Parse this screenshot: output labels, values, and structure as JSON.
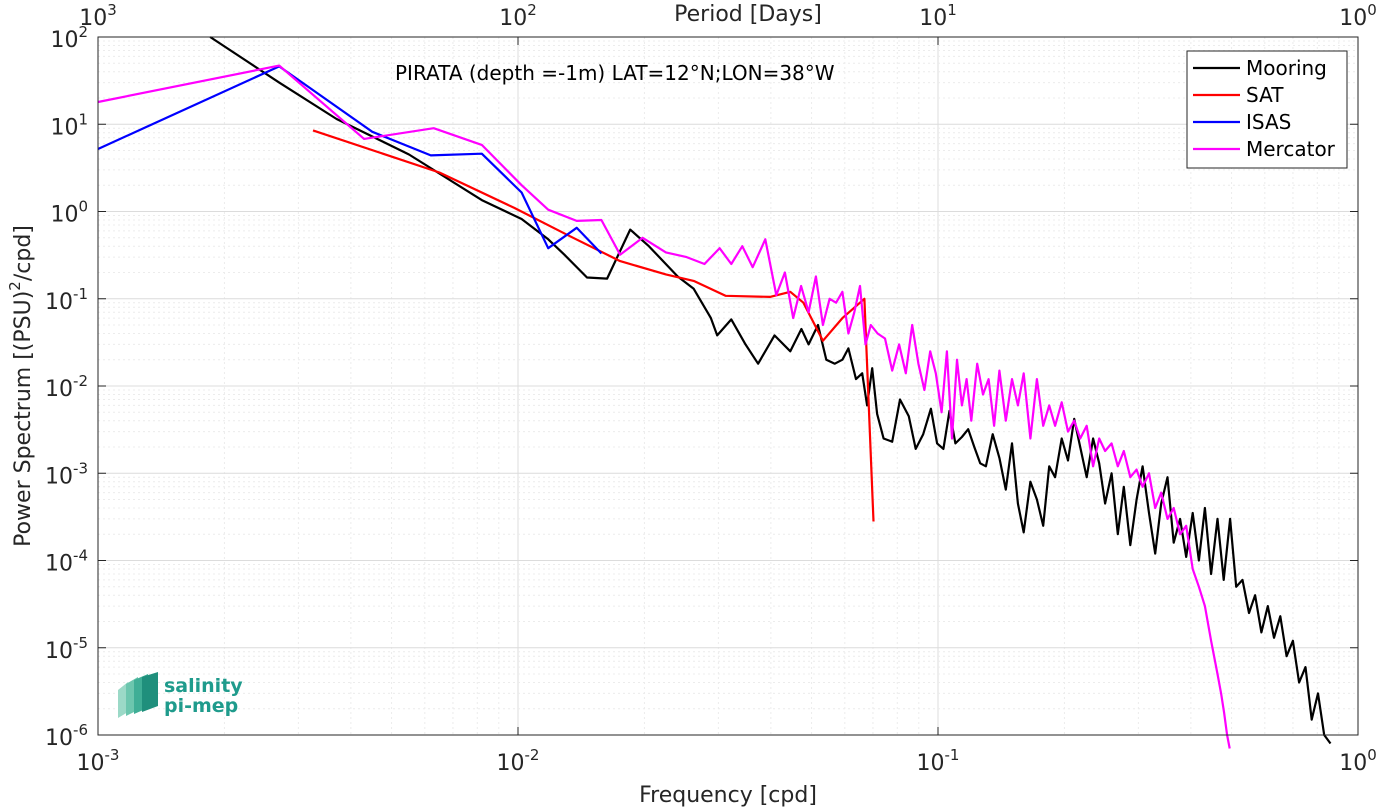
{
  "chart_data": {
    "type": "line",
    "title": "",
    "annotation": "PIRATA (depth =-1m) LAT=12°N;LON=38°W",
    "xlabel": "Frequency [cpd]",
    "ylabel": "Power Spectrum [(PSU)",
    "ylabel_sup": "2",
    "ylabel_suffix": "/cpd]",
    "x2label": "Period [Days]",
    "xscale": "log",
    "yscale": "log",
    "xlim": [
      0.001,
      1
    ],
    "ylim": [
      1e-06,
      100
    ],
    "x2lim": [
      1000,
      1
    ],
    "grid": "major and minor",
    "legend_position": "top-right",
    "x_ticks": [
      {
        "value": 0.001,
        "base": "10",
        "exp": "-3"
      },
      {
        "value": 0.01,
        "base": "10",
        "exp": "-2"
      },
      {
        "value": 0.1,
        "base": "10",
        "exp": "-1"
      },
      {
        "value": 1,
        "base": "10",
        "exp": "0"
      }
    ],
    "x2_ticks": [
      {
        "period": 1000,
        "base": "10",
        "exp": "3"
      },
      {
        "period": 100,
        "base": "10",
        "exp": "2"
      },
      {
        "period": 10,
        "base": "10",
        "exp": "1"
      },
      {
        "period": 1,
        "base": "10",
        "exp": "0"
      }
    ],
    "y_ticks": [
      {
        "value": 100,
        "base": "10",
        "exp": "2"
      },
      {
        "value": 10,
        "base": "10",
        "exp": "1"
      },
      {
        "value": 1,
        "base": "10",
        "exp": "0"
      },
      {
        "value": 0.1,
        "base": "10",
        "exp": "-1"
      },
      {
        "value": 0.01,
        "base": "10",
        "exp": "-2"
      },
      {
        "value": 0.001,
        "base": "10",
        "exp": "-3"
      },
      {
        "value": 0.0001,
        "base": "10",
        "exp": "-4"
      },
      {
        "value": 1e-05,
        "base": "10",
        "exp": "-5"
      },
      {
        "value": 1e-06,
        "base": "10",
        "exp": "-6"
      }
    ],
    "series": [
      {
        "name": "Mooring",
        "color": "#000000",
        "x": [
          0.00185,
          0.0027,
          0.0037,
          0.0055,
          0.0082,
          0.0102,
          0.0118,
          0.0129,
          0.0146,
          0.0163,
          0.0185,
          0.0205,
          0.024,
          0.0262,
          0.0288,
          0.0298,
          0.0322,
          0.0348,
          0.0373,
          0.0408,
          0.0445,
          0.0473,
          0.0492,
          0.0518,
          0.0542,
          0.0568,
          0.0592,
          0.0612,
          0.0638,
          0.066,
          0.0678,
          0.0697,
          0.0716,
          0.0742,
          0.0778,
          0.0812,
          0.0852,
          0.0885,
          0.0922,
          0.0962,
          0.0995,
          0.103,
          0.1065,
          0.11,
          0.114,
          0.118,
          0.122,
          0.126,
          0.13,
          0.135,
          0.14,
          0.145,
          0.15,
          0.155,
          0.16,
          0.166,
          0.172,
          0.178,
          0.184,
          0.19,
          0.197,
          0.204,
          0.211,
          0.218,
          0.226,
          0.234,
          0.242,
          0.25,
          0.259,
          0.268,
          0.277,
          0.287,
          0.297,
          0.307,
          0.318,
          0.329,
          0.34,
          0.352,
          0.364,
          0.377,
          0.39,
          0.404,
          0.418,
          0.432,
          0.447,
          0.463,
          0.479,
          0.496,
          0.513,
          0.531,
          0.55,
          0.569,
          0.589,
          0.61,
          0.631,
          0.653,
          0.676,
          0.7,
          0.724,
          0.75,
          0.776,
          0.803,
          0.831,
          0.86
        ],
        "y": [
          100,
          30,
          11.5,
          4.5,
          1.35,
          0.82,
          0.48,
          0.32,
          0.175,
          0.17,
          0.62,
          0.4,
          0.18,
          0.13,
          0.06,
          0.038,
          0.058,
          0.03,
          0.018,
          0.038,
          0.025,
          0.045,
          0.03,
          0.05,
          0.02,
          0.018,
          0.02,
          0.027,
          0.012,
          0.014,
          0.006,
          0.016,
          0.0048,
          0.0025,
          0.0023,
          0.007,
          0.0045,
          0.0019,
          0.0028,
          0.0055,
          0.0022,
          0.0019,
          0.0052,
          0.0022,
          0.0026,
          0.0032,
          0.002,
          0.0013,
          0.0012,
          0.0028,
          0.0015,
          0.00065,
          0.0022,
          0.00045,
          0.00021,
          0.0008,
          0.0005,
          0.00025,
          0.0012,
          0.0009,
          0.0025,
          0.0014,
          0.0042,
          0.002,
          0.0009,
          0.0025,
          0.0013,
          0.00045,
          0.001,
          0.0002,
          0.0007,
          0.00015,
          0.0005,
          0.0012,
          0.00035,
          0.00012,
          0.00045,
          0.0009,
          0.00016,
          0.0003,
          0.00011,
          0.00035,
          0.0001,
          0.0004,
          7e-05,
          0.0003,
          6e-05,
          0.0003,
          5e-05,
          6e-05,
          2.5e-05,
          4e-05,
          1.5e-05,
          3e-05,
          1.3e-05,
          2.3e-05,
          8e-06,
          1.2e-05,
          4e-06,
          6e-06,
          1.5e-06,
          3e-06,
          1e-06,
          8e-07
        ]
      },
      {
        "name": "SAT",
        "color": "#ff0000",
        "x": [
          0.00325,
          0.0065,
          0.0098,
          0.013,
          0.0175,
          0.0225,
          0.0262,
          0.0312,
          0.0398,
          0.0445,
          0.0478,
          0.0532,
          0.0592,
          0.0668,
          0.0702
        ],
        "y": [
          8.5,
          2.8,
          1.1,
          0.55,
          0.27,
          0.19,
          0.16,
          0.108,
          0.105,
          0.12,
          0.09,
          0.033,
          0.06,
          0.1,
          0.00028
        ]
      },
      {
        "name": "ISAS",
        "color": "#0000ff",
        "x": [
          0.001,
          0.0027,
          0.0045,
          0.0062,
          0.0082,
          0.0102,
          0.0118,
          0.0138,
          0.0158
        ],
        "y": [
          5.2,
          46,
          8.2,
          4.4,
          4.6,
          1.65,
          0.38,
          0.65,
          0.33
        ]
      },
      {
        "name": "Mercator",
        "color": "#ff00ff",
        "x": [
          0.001,
          0.0027,
          0.0043,
          0.0063,
          0.0082,
          0.0102,
          0.0118,
          0.0138,
          0.0158,
          0.0175,
          0.0198,
          0.0225,
          0.0252,
          0.0278,
          0.0302,
          0.0322,
          0.0342,
          0.0362,
          0.0388,
          0.0412,
          0.0432,
          0.0452,
          0.0472,
          0.0492,
          0.0512,
          0.0532,
          0.0552,
          0.0572,
          0.0592,
          0.0612,
          0.0632,
          0.0652,
          0.0672,
          0.0692,
          0.0718,
          0.0748,
          0.0778,
          0.0808,
          0.0838,
          0.0868,
          0.0898,
          0.0928,
          0.0958,
          0.0988,
          0.102,
          0.105,
          0.108,
          0.111,
          0.114,
          0.117,
          0.12,
          0.124,
          0.128,
          0.132,
          0.136,
          0.14,
          0.145,
          0.15,
          0.155,
          0.16,
          0.166,
          0.172,
          0.178,
          0.184,
          0.19,
          0.197,
          0.204,
          0.211,
          0.218,
          0.226,
          0.234,
          0.242,
          0.25,
          0.259,
          0.268,
          0.277,
          0.287,
          0.297,
          0.307,
          0.318,
          0.329,
          0.34,
          0.352,
          0.364,
          0.377,
          0.39,
          0.404,
          0.418,
          0.432,
          0.447,
          0.463,
          0.472,
          0.48,
          0.488,
          0.495
        ],
        "y": [
          18,
          47,
          6.8,
          9,
          5.8,
          2,
          1.05,
          0.78,
          0.8,
          0.32,
          0.5,
          0.34,
          0.3,
          0.25,
          0.38,
          0.25,
          0.4,
          0.23,
          0.48,
          0.11,
          0.2,
          0.06,
          0.14,
          0.07,
          0.18,
          0.05,
          0.1,
          0.09,
          0.12,
          0.04,
          0.07,
          0.14,
          0.03,
          0.05,
          0.04,
          0.035,
          0.015,
          0.03,
          0.014,
          0.05,
          0.018,
          0.009,
          0.025,
          0.014,
          0.005,
          0.025,
          0.0025,
          0.02,
          0.006,
          0.012,
          0.004,
          0.018,
          0.008,
          0.012,
          0.0035,
          0.015,
          0.004,
          0.012,
          0.006,
          0.014,
          0.0025,
          0.012,
          0.0035,
          0.006,
          0.0035,
          0.0065,
          0.003,
          0.004,
          0.0025,
          0.0035,
          0.0012,
          0.0025,
          0.0018,
          0.0022,
          0.0012,
          0.0018,
          0.0009,
          0.0011,
          0.0007,
          0.001,
          0.0004,
          0.0006,
          0.0003,
          0.0004,
          0.0002,
          0.00025,
          8e-05,
          5e-05,
          3e-05,
          1.2e-05,
          5e-06,
          3e-06,
          1.8e-06,
          1e-06,
          7e-07
        ]
      }
    ]
  },
  "logo": {
    "line1": "salinity",
    "line2": "pi-mep"
  }
}
